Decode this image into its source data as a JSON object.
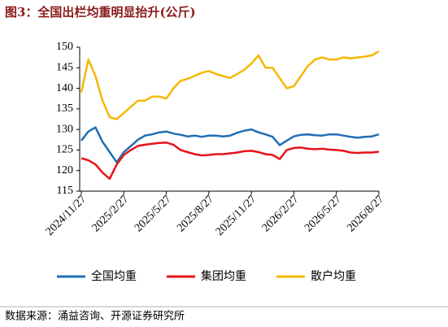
{
  "chart_data": {
    "type": "line",
    "title": "图3：全国出栏均重明显抬升(公斤)",
    "source": "数据来源：涌益咨询、开源证券研究所",
    "categories": [
      "2024/11/27",
      null,
      null,
      null,
      null,
      null,
      "2025/2/27",
      null,
      null,
      null,
      null,
      null,
      "2025/5/27",
      null,
      null,
      null,
      null,
      null,
      "2025/8/27",
      null,
      null,
      null,
      null,
      null,
      "2025/11/27",
      null,
      null,
      null,
      null,
      null,
      "2026/2/27",
      null,
      null,
      null,
      null,
      null,
      "2026/5/27",
      null,
      null,
      null,
      null,
      null,
      "2026/8/27"
    ],
    "series": [
      {
        "name": "全国均重",
        "color": "#1f6eb5",
        "values": [
          127.3,
          129.5,
          130.5,
          127,
          124.5,
          122,
          124.5,
          126,
          127.5,
          128.5,
          128.8,
          129.3,
          129.5,
          129,
          128.7,
          128.3,
          128.5,
          128.2,
          128.5,
          128.5,
          128.3,
          128.5,
          129.2,
          129.7,
          130,
          129.3,
          128.8,
          128.2,
          126.2,
          127.3,
          128.3,
          128.7,
          128.8,
          128.6,
          128.5,
          128.8,
          128.8,
          128.5,
          128.2,
          128,
          128.2,
          128.3,
          128.8
        ]
      },
      {
        "name": "集团均重",
        "color": "#e8121a",
        "values": [
          123,
          122.5,
          121.5,
          119.5,
          118,
          121.5,
          123.8,
          125,
          126,
          126.3,
          126.5,
          126.7,
          126.8,
          126.3,
          125,
          124.5,
          124,
          123.7,
          123.8,
          124,
          124,
          124.2,
          124.4,
          124.7,
          124.8,
          124.5,
          124,
          123.8,
          122.8,
          125,
          125.5,
          125.6,
          125.3,
          125.2,
          125.3,
          125.1,
          125,
          124.8,
          124.4,
          124.3,
          124.4,
          124.4,
          124.6
        ]
      },
      {
        "name": "散户均重",
        "color": "#f5b800",
        "values": [
          139,
          147,
          143,
          137,
          133,
          132.5,
          134,
          135.5,
          137,
          137,
          138,
          138,
          137.5,
          140,
          141.8,
          142.3,
          143,
          143.8,
          144.2,
          143.5,
          143,
          142.5,
          143.5,
          144.5,
          146,
          148,
          145,
          145,
          142.5,
          140,
          140.5,
          143,
          145.5,
          147,
          147.5,
          147,
          147,
          147.5,
          147.3,
          147.5,
          147.7,
          148,
          149
        ]
      }
    ],
    "ylim": [
      115,
      150
    ],
    "yticks": [
      115,
      120,
      125,
      130,
      135,
      140,
      145,
      150
    ],
    "grid": false,
    "legend": "bottom"
  }
}
